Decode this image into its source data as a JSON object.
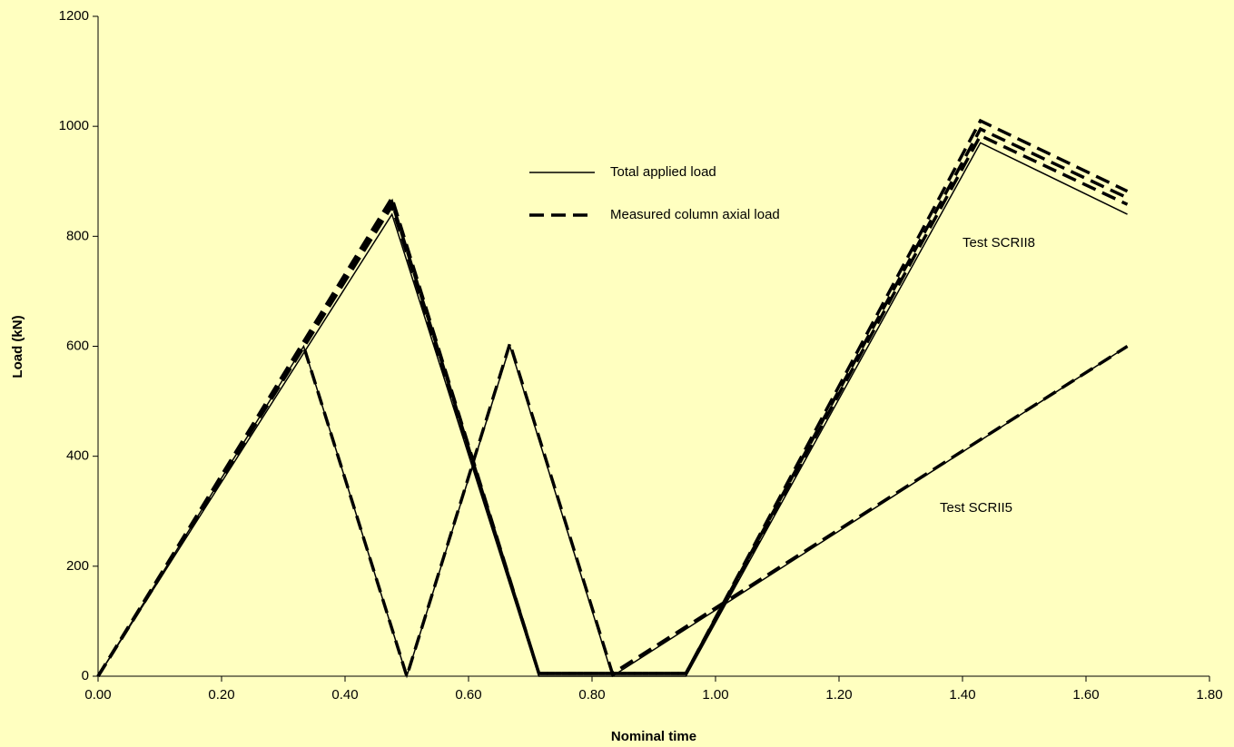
{
  "chart_data": {
    "type": "line",
    "xlabel": "Nominal time",
    "ylabel": "Load (kN)",
    "xlim": [
      0,
      1.8
    ],
    "ylim": [
      0,
      1200
    ],
    "xticks": [
      {
        "value": 0,
        "label": "0.00"
      },
      {
        "value": 0.2,
        "label": "0.20"
      },
      {
        "value": 0.4,
        "label": "0.40"
      },
      {
        "value": 0.6,
        "label": "0.60"
      },
      {
        "value": 0.8,
        "label": "0.80"
      },
      {
        "value": 1.0,
        "label": "1.00"
      },
      {
        "value": 1.2,
        "label": "1.20"
      },
      {
        "value": 1.4,
        "label": "1.40"
      },
      {
        "value": 1.6,
        "label": "1.60"
      },
      {
        "value": 1.8,
        "label": "1.80"
      }
    ],
    "yticks": [
      0,
      200,
      400,
      600,
      800,
      1000,
      1200
    ],
    "grid": false,
    "series": [
      {
        "name": "Total applied load",
        "color": "#000000",
        "style": "solid",
        "x": [
          0,
          0.476,
          0.714,
          0.952,
          1.429,
          1.667
        ],
        "values": [
          0,
          840,
          0,
          0,
          970,
          840
        ]
      },
      {
        "name": "Measured column axial load",
        "color": "#000000",
        "style": "dashed",
        "x": [
          0,
          0.476,
          0.714,
          0.952,
          1.429,
          1.667
        ],
        "values": [
          0,
          855,
          5,
          5,
          983,
          858
        ]
      },
      {
        "color": "#000000",
        "style": "dashed",
        "x": [
          0,
          0.476,
          0.714,
          0.952,
          1.429,
          1.667
        ],
        "values": [
          0,
          862,
          5,
          5,
          995,
          870
        ]
      },
      {
        "color": "#000000",
        "style": "dashed",
        "x": [
          0,
          0.476,
          0.714,
          0.952,
          1.429,
          1.667
        ],
        "values": [
          0,
          870,
          5,
          5,
          1010,
          882
        ]
      },
      {
        "color": "#000000",
        "style": "solid",
        "x": [
          0,
          0.333,
          0.5,
          0.667,
          0.833,
          1.667
        ],
        "values": [
          0,
          600,
          0,
          600,
          0,
          600
        ]
      },
      {
        "color": "#000000",
        "style": "dashed",
        "x": [
          0,
          0.333,
          0.5,
          0.667,
          0.833,
          1.667
        ],
        "values": [
          0,
          600,
          0,
          605,
          5,
          600
        ]
      }
    ],
    "annotations": [
      "Test SCRII8",
      "Test SCRII5"
    ]
  }
}
